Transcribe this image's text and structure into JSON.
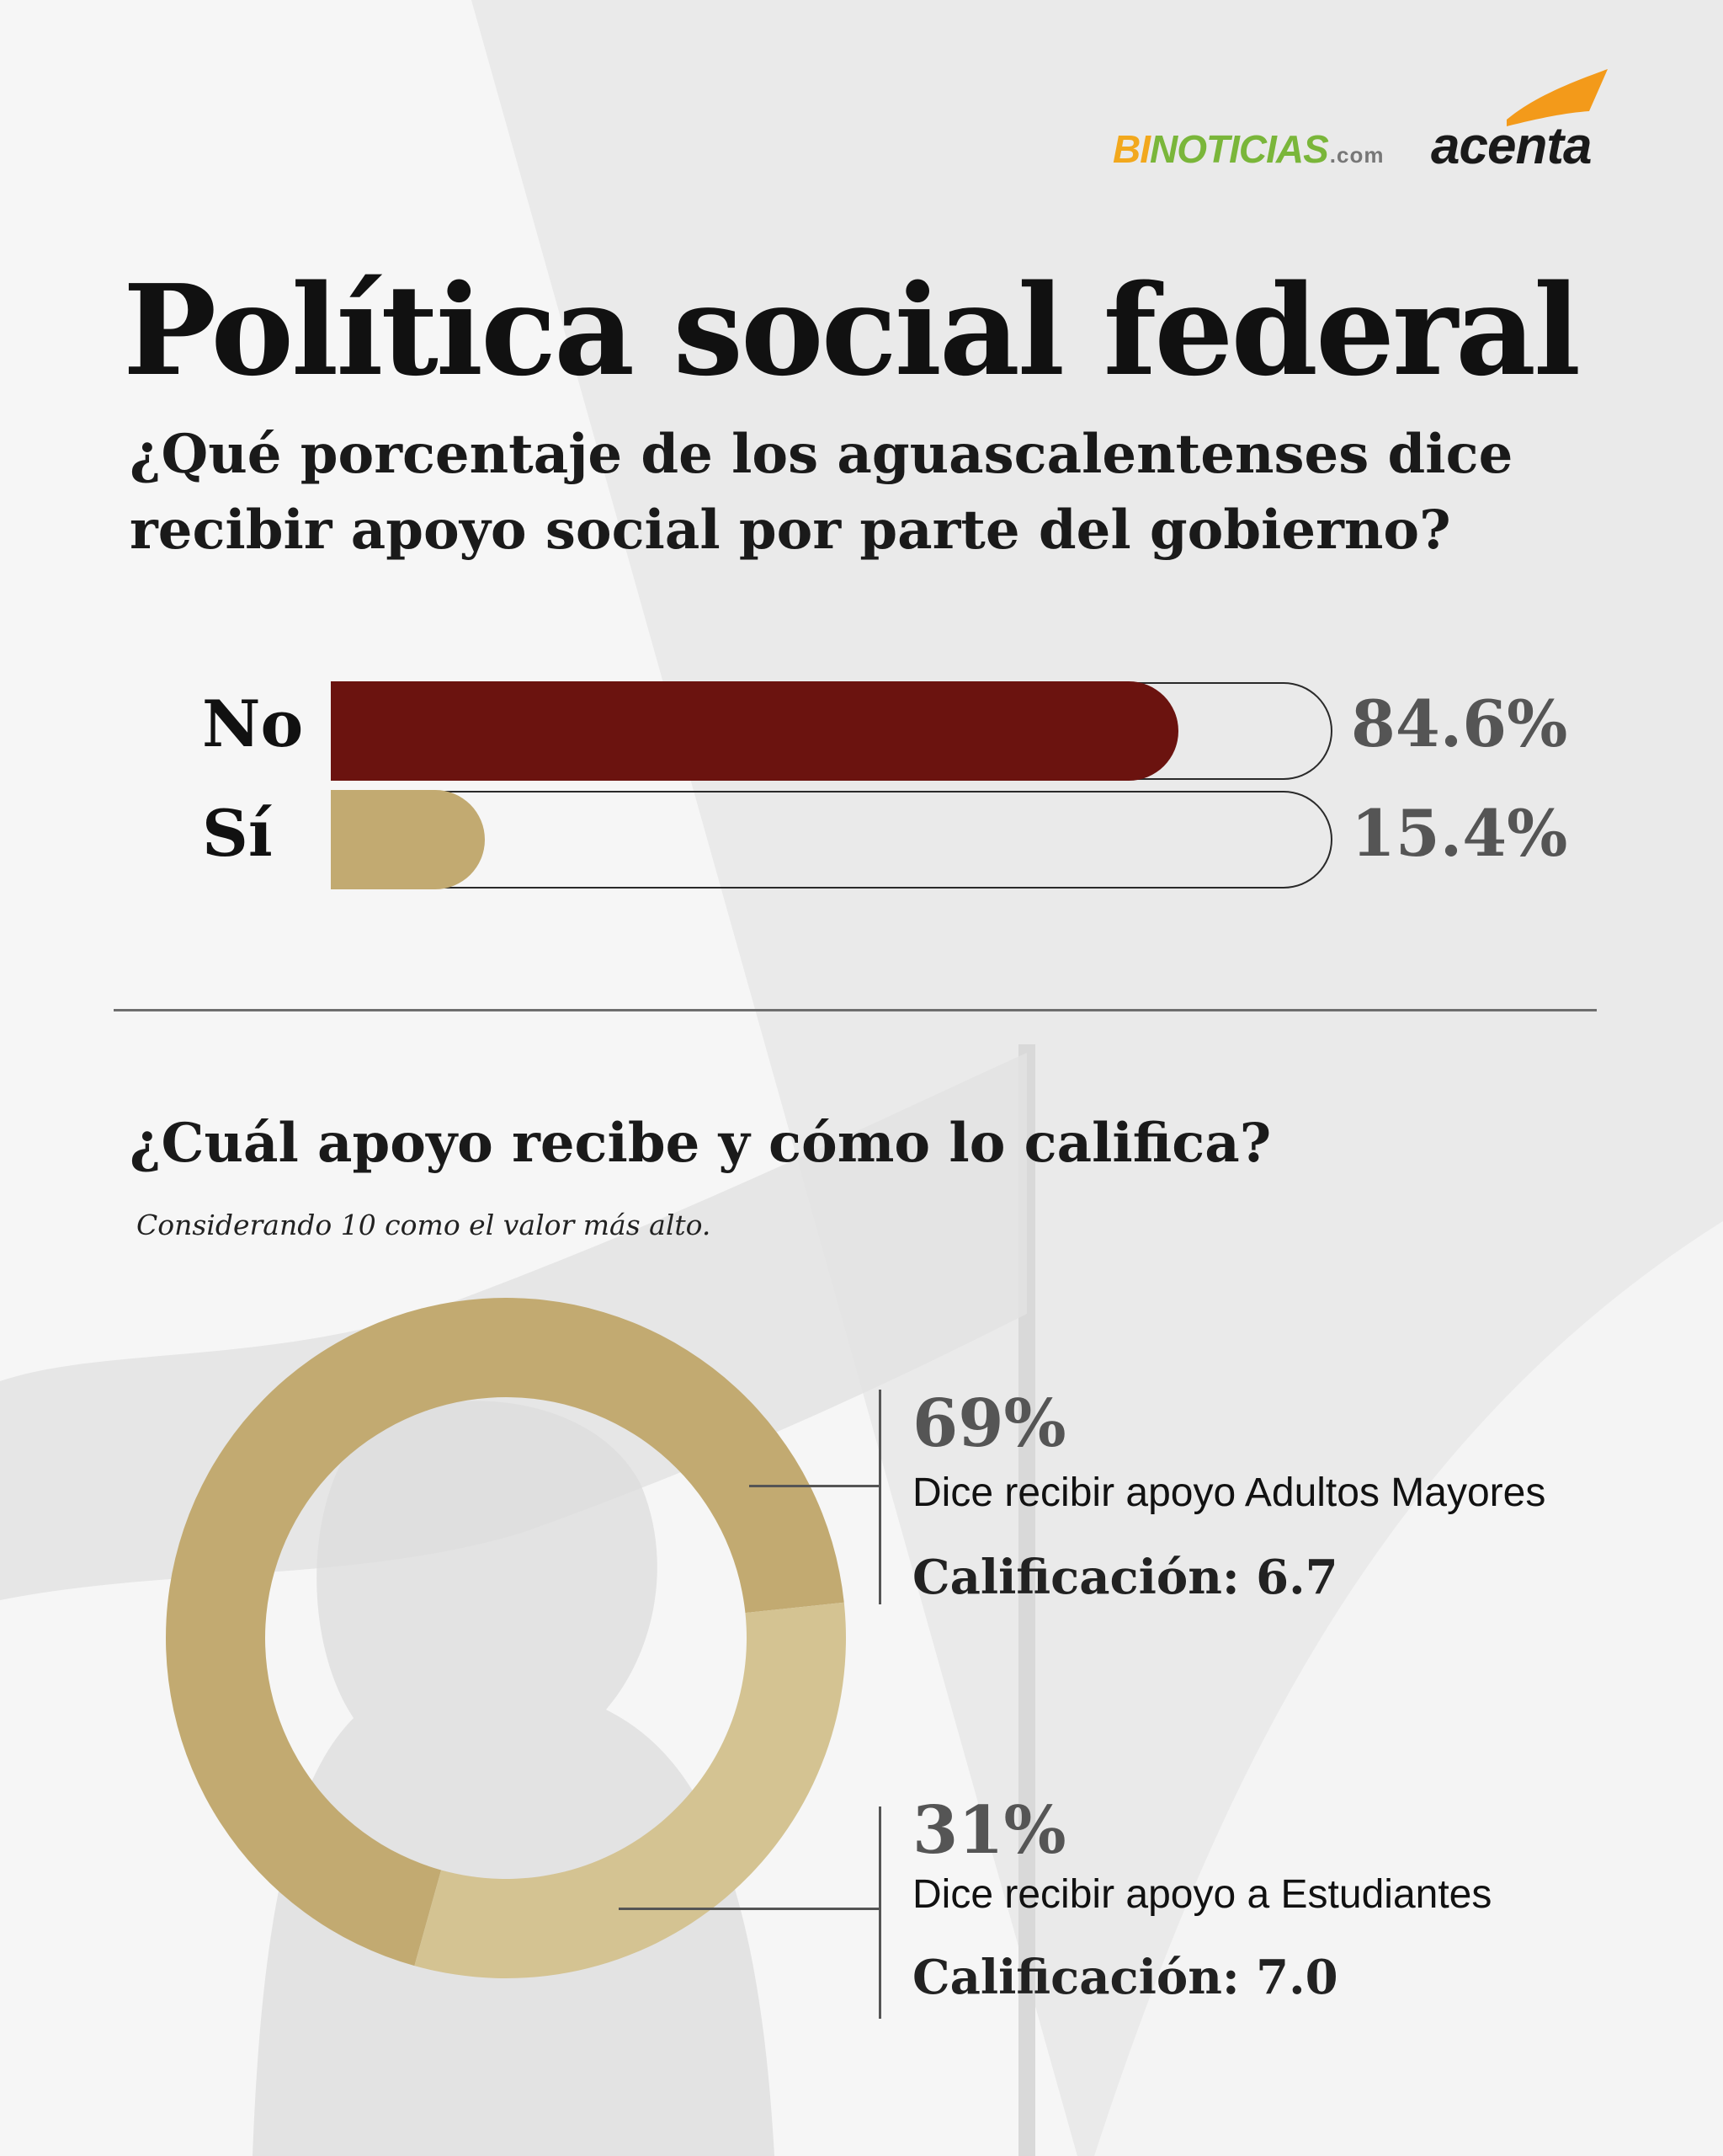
{
  "brand": {
    "binoticias_a": "BI",
    "binoticias_b": "NOTICIAS",
    "binoticias_c": ".com",
    "acenta": "acenta"
  },
  "title": "Política social federal",
  "question": "¿Qué porcentaje de los aguascalentenses dice recibir apoyo social por parte del gobierno?",
  "section2": {
    "title": "¿Cuál apoyo recibe y cómo lo califica?",
    "note": "Considerando 10 como el valor más alto."
  },
  "colors": {
    "no": "#6b130f",
    "si": "#c2aa71",
    "donut_main": "#c2aa71",
    "donut_secondary": "#d4c392"
  },
  "chart_data": [
    {
      "type": "bar",
      "categories": [
        "No",
        "Sí"
      ],
      "values": [
        84.6,
        15.4
      ],
      "labels": [
        "84.6%",
        "15.4%"
      ],
      "xlim": [
        0,
        100
      ]
    },
    {
      "type": "pie",
      "categories": [
        "Dice recibir apoyo Adultos Mayores",
        "Dice recibir apoyo a Estudiantes"
      ],
      "values": [
        69,
        31
      ],
      "labels": [
        "69%",
        "31%"
      ],
      "ratings": [
        "Calificación: 6.7",
        "Calificación: 7.0"
      ]
    }
  ]
}
